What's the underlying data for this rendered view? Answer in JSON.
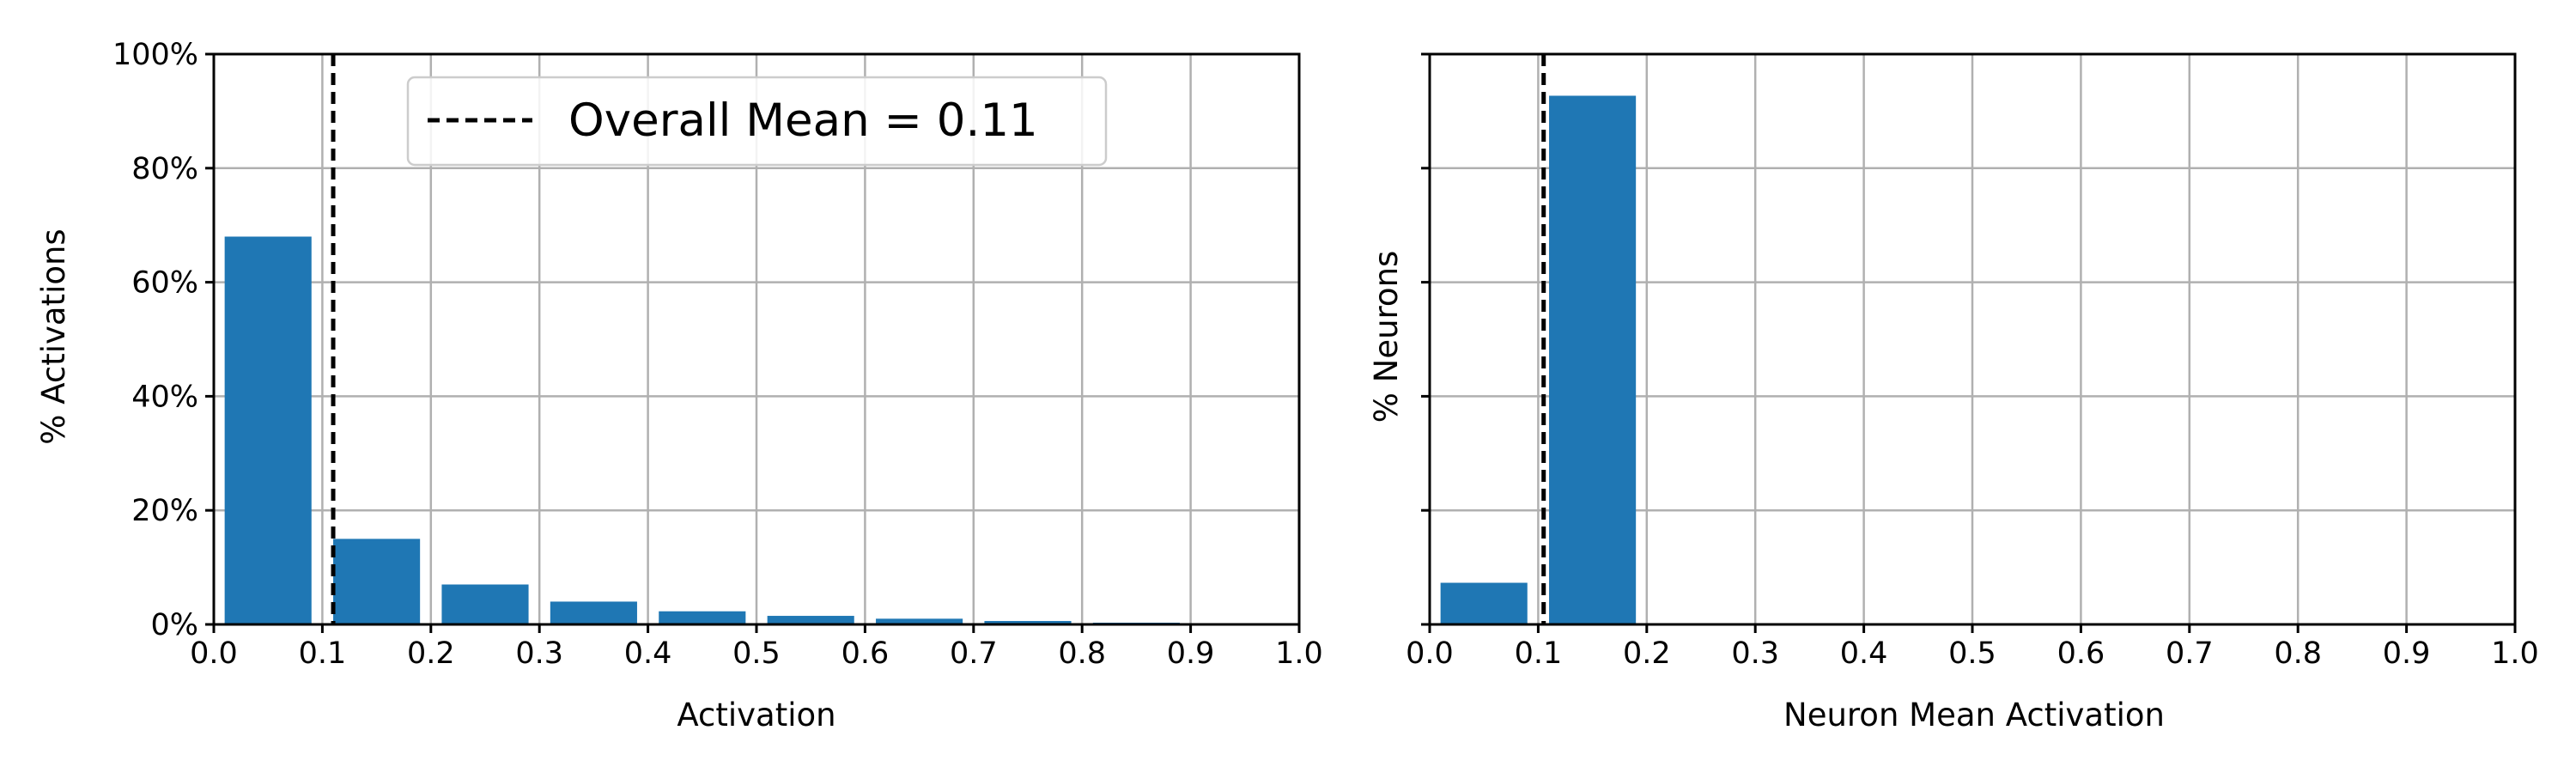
{
  "chart_data": [
    {
      "type": "bar",
      "xlabel": "Activation",
      "ylabel": "% Activations",
      "xlim": [
        0.0,
        1.0
      ],
      "ylim": [
        0,
        100
      ],
      "x_ticks": [
        "0.0",
        "0.1",
        "0.2",
        "0.3",
        "0.4",
        "0.5",
        "0.6",
        "0.7",
        "0.8",
        "0.9",
        "1.0"
      ],
      "y_ticks": [
        "0%",
        "20%",
        "40%",
        "60%",
        "80%",
        "100%"
      ],
      "y_tick_labels_visible": true,
      "grid": true,
      "bar_color": "#1f77b4",
      "bins": [
        {
          "start": 0.0,
          "end": 0.1,
          "value": 68
        },
        {
          "start": 0.1,
          "end": 0.2,
          "value": 15
        },
        {
          "start": 0.2,
          "end": 0.3,
          "value": 7
        },
        {
          "start": 0.3,
          "end": 0.4,
          "value": 4
        },
        {
          "start": 0.4,
          "end": 0.5,
          "value": 2.3
        },
        {
          "start": 0.5,
          "end": 0.6,
          "value": 1.5
        },
        {
          "start": 0.6,
          "end": 0.7,
          "value": 1.0
        },
        {
          "start": 0.7,
          "end": 0.8,
          "value": 0.6
        },
        {
          "start": 0.8,
          "end": 0.9,
          "value": 0.3
        }
      ],
      "mean_line": {
        "x": 0.11,
        "style": "dashed",
        "color": "#000000"
      },
      "legend": {
        "entries": [
          "Overall Mean = 0.11"
        ],
        "placement": "top-center"
      }
    },
    {
      "type": "bar",
      "xlabel": "Neuron Mean Activation",
      "ylabel": "% Neurons",
      "xlim": [
        0.0,
        1.0
      ],
      "ylim": [
        0,
        100
      ],
      "x_ticks": [
        "0.0",
        "0.1",
        "0.2",
        "0.3",
        "0.4",
        "0.5",
        "0.6",
        "0.7",
        "0.8",
        "0.9",
        "1.0"
      ],
      "y_ticks": [
        "0%",
        "20%",
        "40%",
        "60%",
        "80%",
        "100%"
      ],
      "y_tick_labels_visible": false,
      "grid": true,
      "bar_color": "#1f77b4",
      "bins": [
        {
          "start": 0.0,
          "end": 0.1,
          "value": 7.3
        },
        {
          "start": 0.1,
          "end": 0.2,
          "value": 92.7
        }
      ],
      "mean_line": {
        "x": 0.105,
        "style": "dashed",
        "color": "#000000"
      }
    }
  ]
}
